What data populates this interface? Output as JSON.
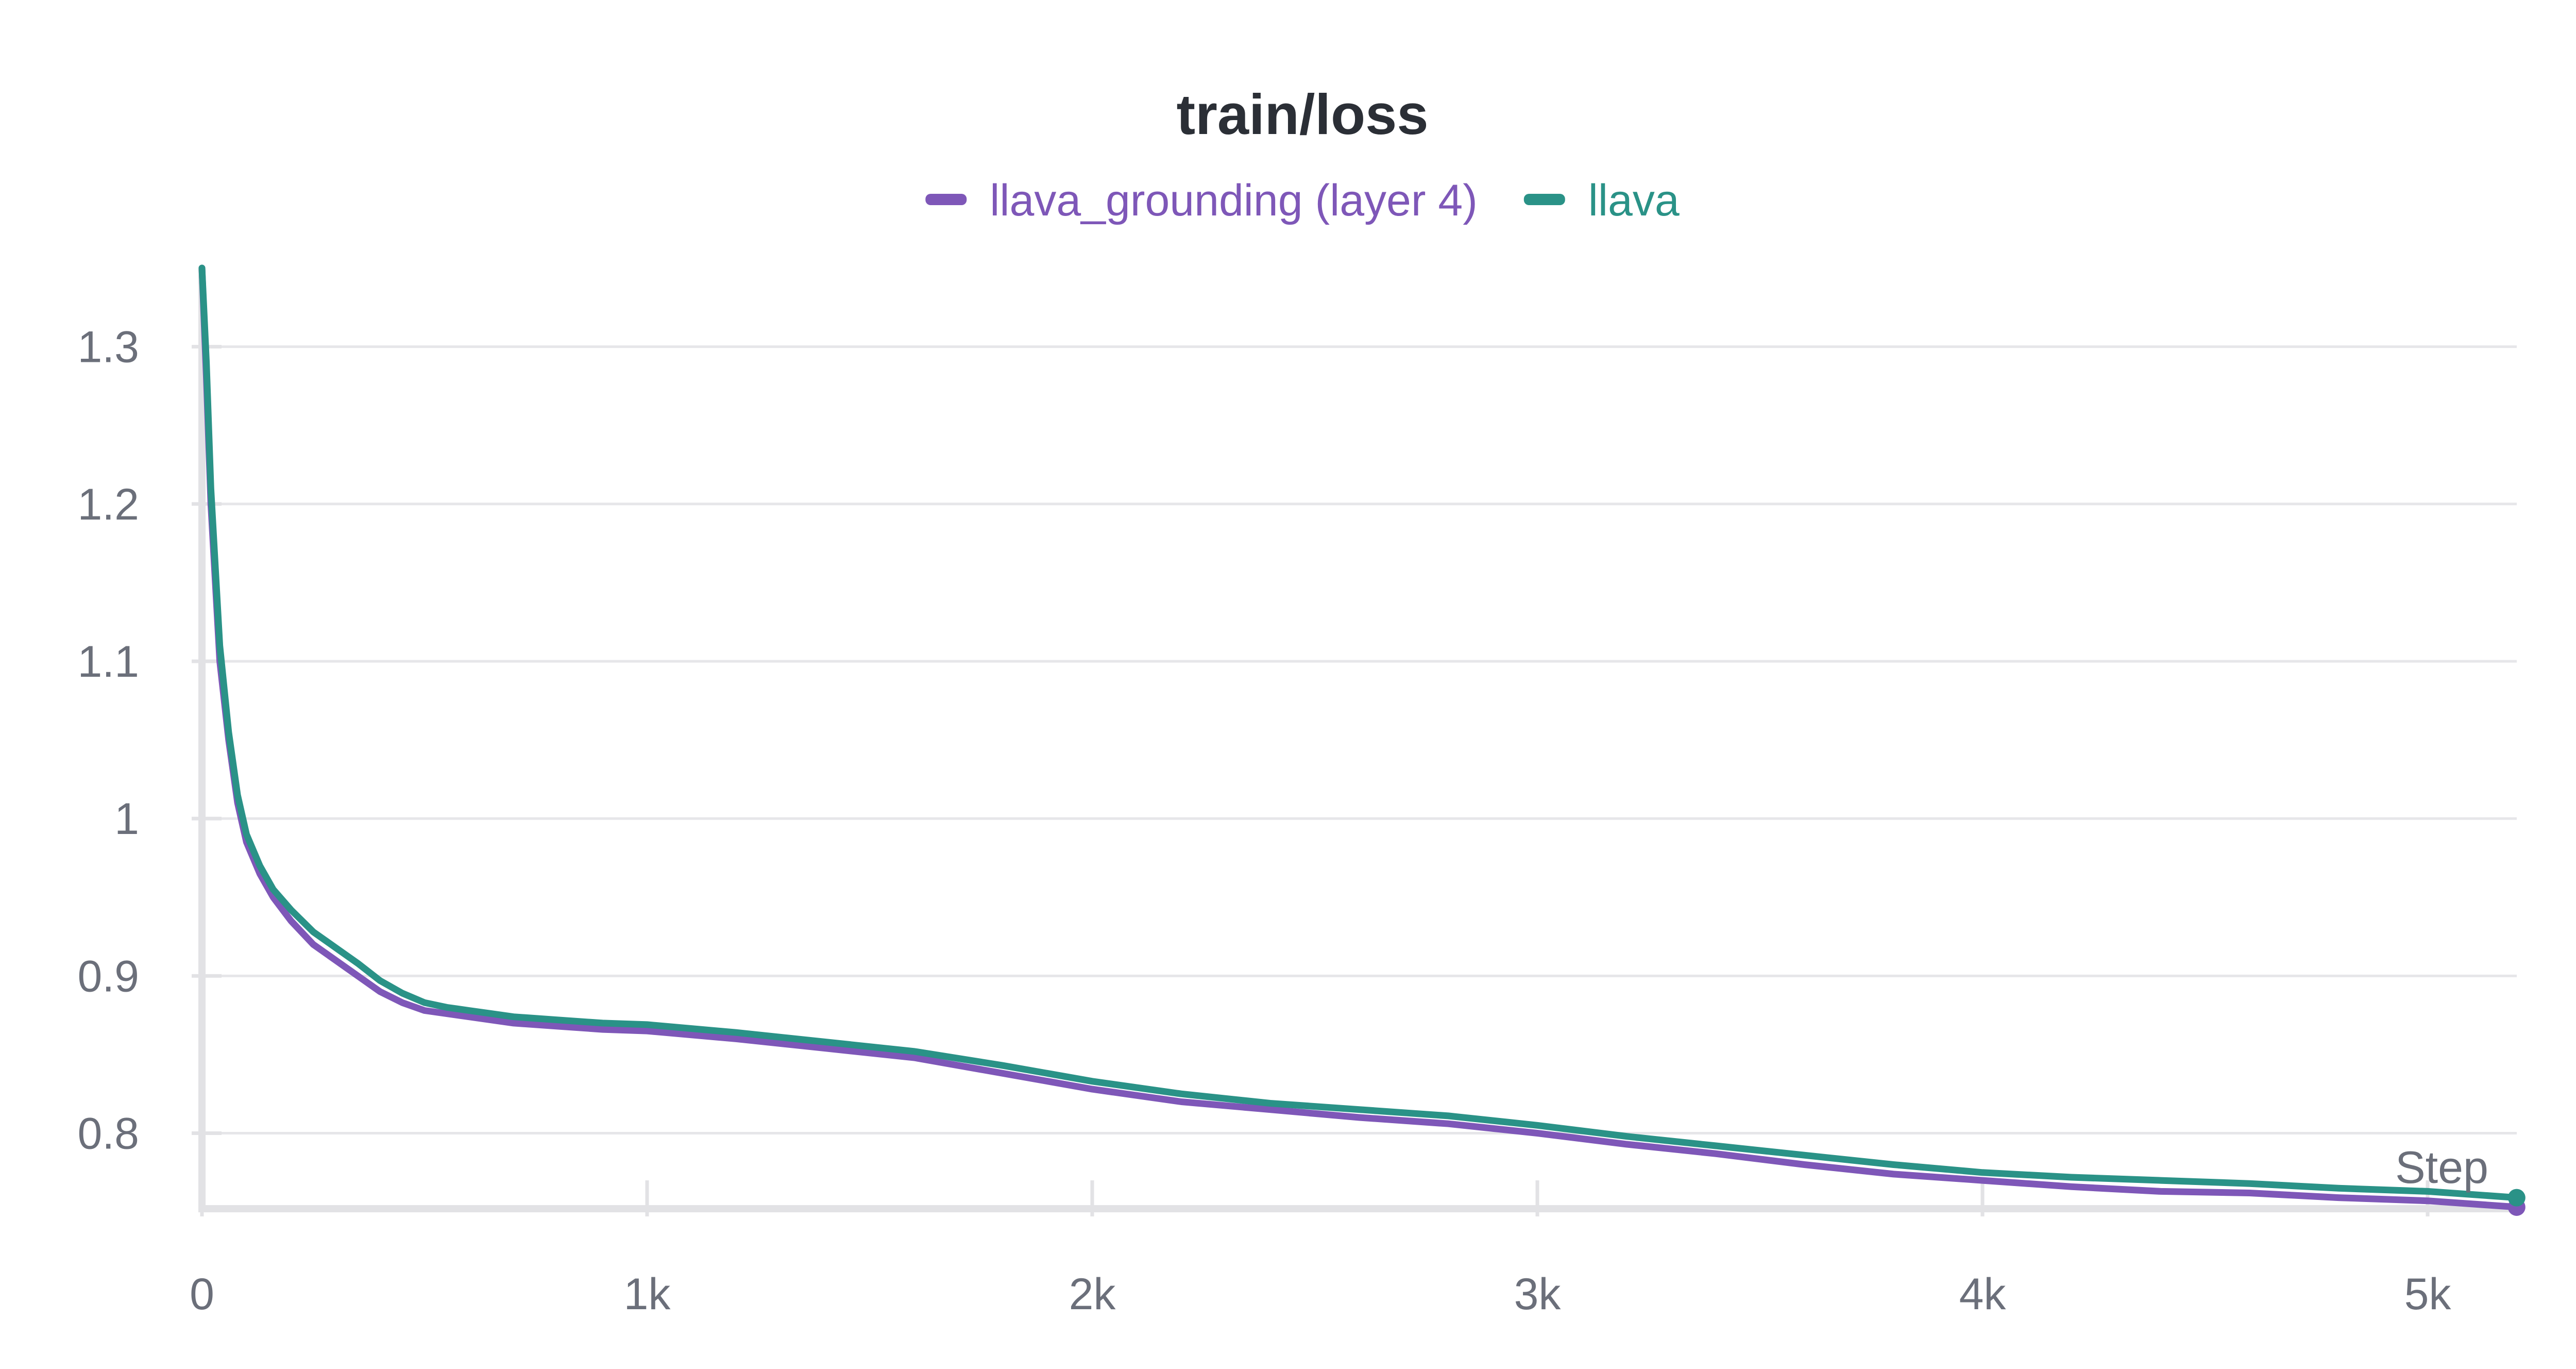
{
  "chart_data": {
    "type": "line",
    "title": "train/loss",
    "xlabel": "Step",
    "ylabel": "",
    "xlim": [
      0,
      5200
    ],
    "ylim": [
      0.752,
      1.35
    ],
    "x_ticks": [
      {
        "value": 0,
        "label": "0"
      },
      {
        "value": 1000,
        "label": "1k"
      },
      {
        "value": 2000,
        "label": "2k"
      },
      {
        "value": 3000,
        "label": "3k"
      },
      {
        "value": 4000,
        "label": "4k"
      },
      {
        "value": 5000,
        "label": "5k"
      }
    ],
    "y_ticks": [
      {
        "value": 0.8,
        "label": "0.8"
      },
      {
        "value": 0.9,
        "label": "0.9"
      },
      {
        "value": 1.0,
        "label": "1"
      },
      {
        "value": 1.1,
        "label": "1.1"
      },
      {
        "value": 1.2,
        "label": "1.2"
      },
      {
        "value": 1.3,
        "label": "1.3"
      }
    ],
    "grid": true,
    "legend_position": "top-center",
    "series": [
      {
        "name": "llava_grounding (layer 4)",
        "color": "#7e57b8",
        "x": [
          0,
          10,
          20,
          40,
          60,
          80,
          100,
          130,
          160,
          200,
          250,
          300,
          350,
          400,
          450,
          500,
          550,
          600,
          650,
          700,
          800,
          900,
          1000,
          1200,
          1400,
          1600,
          1800,
          2000,
          2200,
          2400,
          2600,
          2800,
          3000,
          3200,
          3400,
          3600,
          3800,
          4000,
          4200,
          4400,
          4600,
          4800,
          5000,
          5200
        ],
        "y": [
          1.35,
          1.28,
          1.2,
          1.1,
          1.05,
          1.01,
          0.985,
          0.965,
          0.95,
          0.935,
          0.92,
          0.91,
          0.9,
          0.89,
          0.883,
          0.878,
          0.876,
          0.874,
          0.872,
          0.87,
          0.868,
          0.866,
          0.865,
          0.86,
          0.854,
          0.848,
          0.838,
          0.828,
          0.82,
          0.815,
          0.81,
          0.806,
          0.8,
          0.793,
          0.787,
          0.78,
          0.774,
          0.77,
          0.766,
          0.763,
          0.762,
          0.759,
          0.757,
          0.753
        ]
      },
      {
        "name": "llava",
        "color": "#2a9287",
        "x": [
          0,
          10,
          20,
          40,
          60,
          80,
          100,
          130,
          160,
          200,
          250,
          300,
          350,
          400,
          450,
          500,
          550,
          600,
          650,
          700,
          800,
          900,
          1000,
          1200,
          1400,
          1600,
          1800,
          2000,
          2200,
          2400,
          2600,
          2800,
          3000,
          3200,
          3400,
          3600,
          3800,
          4000,
          4200,
          4400,
          4600,
          4800,
          5000,
          5200
        ],
        "y": [
          1.35,
          1.29,
          1.21,
          1.11,
          1.055,
          1.015,
          0.99,
          0.97,
          0.955,
          0.942,
          0.928,
          0.918,
          0.908,
          0.897,
          0.889,
          0.883,
          0.88,
          0.878,
          0.876,
          0.874,
          0.872,
          0.87,
          0.869,
          0.864,
          0.858,
          0.852,
          0.843,
          0.833,
          0.825,
          0.819,
          0.815,
          0.811,
          0.805,
          0.798,
          0.792,
          0.786,
          0.78,
          0.775,
          0.772,
          0.77,
          0.768,
          0.765,
          0.763,
          0.759
        ]
      }
    ]
  }
}
